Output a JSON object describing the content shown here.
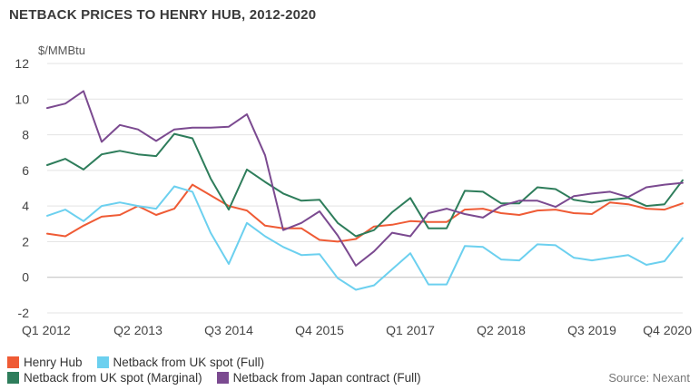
{
  "chart_data": {
    "type": "line",
    "title": "NETBACK PRICES TO HENRY HUB, 2012-2020",
    "ylabel": "$/MMBtu",
    "ylim": [
      -2,
      12
    ],
    "yticks": [
      -2,
      0,
      2,
      4,
      6,
      8,
      10,
      12
    ],
    "grid": true,
    "legend_position": "bottom",
    "x": [
      "Q1 2012",
      "Q2 2012",
      "Q3 2012",
      "Q4 2012",
      "Q1 2013",
      "Q2 2013",
      "Q3 2013",
      "Q4 2013",
      "Q1 2014",
      "Q2 2014",
      "Q3 2014",
      "Q4 2014",
      "Q1 2015",
      "Q2 2015",
      "Q3 2015",
      "Q4 2015",
      "Q1 2016",
      "Q2 2016",
      "Q3 2016",
      "Q4 2016",
      "Q1 2017",
      "Q2 2017",
      "Q3 2017",
      "Q4 2017",
      "Q1 2018",
      "Q2 2018",
      "Q3 2018",
      "Q4 2018",
      "Q1 2019",
      "Q2 2019",
      "Q3 2019",
      "Q4 2019",
      "Q1 2020",
      "Q2 2020",
      "Q3 2020",
      "Q4 2020"
    ],
    "xtick_labels": [
      "Q1 2012",
      "Q2 2013",
      "Q3 2014",
      "Q4 2015",
      "Q1 2017",
      "Q2 2018",
      "Q3 2019",
      "Q4 2020"
    ],
    "series": [
      {
        "name": "Henry Hub",
        "color": "#ef5b35",
        "values": [
          2.45,
          2.3,
          2.9,
          3.4,
          3.5,
          4.0,
          3.5,
          3.85,
          5.2,
          4.6,
          4.0,
          3.75,
          2.9,
          2.75,
          2.75,
          2.1,
          2.0,
          2.15,
          2.85,
          2.95,
          3.15,
          3.1,
          3.1,
          3.8,
          3.85,
          3.6,
          3.5,
          3.75,
          3.8,
          3.6,
          3.55,
          4.2,
          4.1,
          3.85,
          3.8,
          4.15
        ]
      },
      {
        "name": "Netback from UK spot (Full)",
        "color": "#6cd0ef",
        "values": [
          3.45,
          3.8,
          3.15,
          4.0,
          4.2,
          4.0,
          3.85,
          5.1,
          4.8,
          2.5,
          0.75,
          3.05,
          2.3,
          1.7,
          1.25,
          1.3,
          -0.05,
          -0.7,
          -0.45,
          0.45,
          1.35,
          -0.4,
          -0.4,
          1.75,
          1.7,
          1.0,
          0.95,
          1.85,
          1.8,
          1.1,
          0.95,
          1.1,
          1.25,
          0.7,
          0.9,
          2.2
        ]
      },
      {
        "name": "Netback from UK spot (Marginal)",
        "color": "#2e7d5b",
        "values": [
          6.3,
          6.65,
          6.05,
          6.9,
          7.1,
          6.9,
          6.8,
          8.05,
          7.8,
          5.55,
          3.8,
          6.05,
          5.35,
          4.7,
          4.3,
          4.35,
          3.05,
          2.3,
          2.65,
          3.65,
          4.45,
          2.75,
          2.75,
          4.85,
          4.8,
          4.15,
          4.15,
          5.05,
          4.95,
          4.35,
          4.2,
          4.35,
          4.45,
          4.0,
          4.1,
          5.45
        ]
      },
      {
        "name": "Netback from Japan contract (Full)",
        "color": "#7b4a90",
        "values": [
          9.5,
          9.75,
          10.45,
          7.6,
          8.55,
          8.3,
          7.65,
          8.3,
          8.4,
          8.4,
          8.45,
          9.15,
          6.85,
          2.65,
          3.05,
          3.7,
          2.35,
          0.65,
          1.45,
          2.5,
          2.3,
          3.6,
          3.85,
          3.55,
          3.35,
          4.0,
          4.3,
          4.3,
          3.95,
          4.55,
          4.7,
          4.8,
          4.5,
          5.05,
          5.2,
          5.3
        ]
      }
    ]
  },
  "source": "Source: Nexant"
}
